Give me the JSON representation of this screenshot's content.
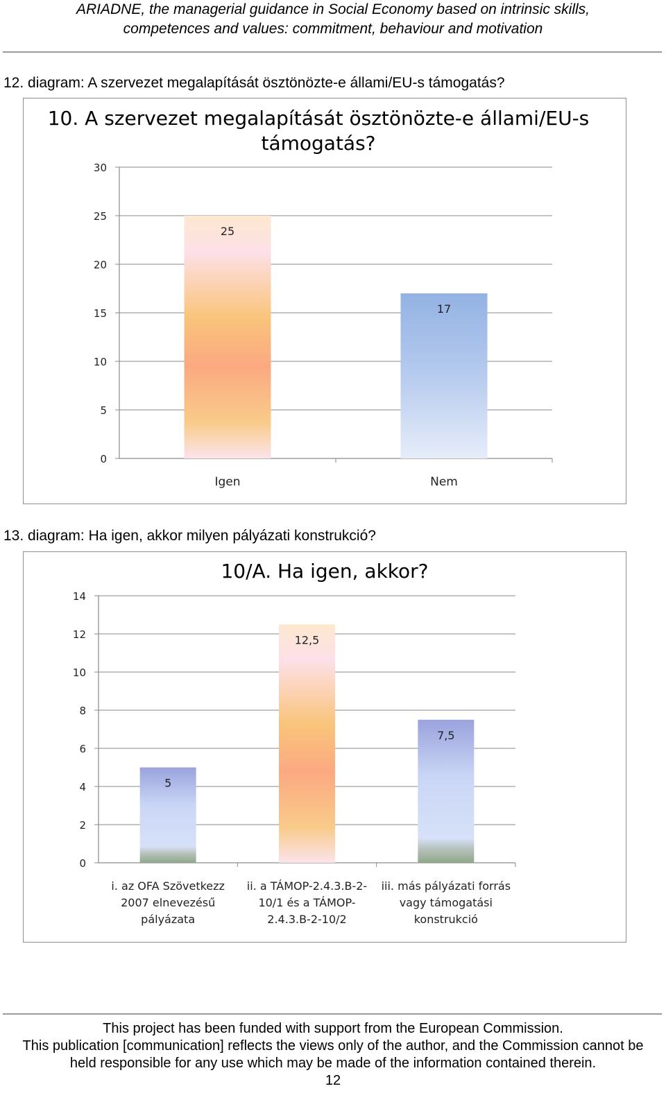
{
  "header": {
    "line1": "ARIADNE, the managerial guidance in Social Economy based on intrinsic skills,",
    "line2": "competences and values: commitment, behaviour and motivation"
  },
  "captions": {
    "c1": "12. diagram: A szervezet megalapítását ösztönözte-e állami/EU-s támogatás?",
    "c2": "13. diagram: Ha igen, akkor milyen pályázati konstrukció?"
  },
  "chart_data": [
    {
      "type": "bar",
      "title_lines": [
        "10. A szervezet megalapítását ösztönözte-e állami/EU-s",
        "támogatás?"
      ],
      "categories": [
        "Igen",
        "Nem"
      ],
      "values": [
        25,
        17
      ],
      "value_labels": [
        "25",
        "17"
      ],
      "yticks": [
        "0",
        "5",
        "10",
        "15",
        "20",
        "25",
        "30"
      ],
      "ylim": [
        0,
        30
      ],
      "grid": true,
      "colors": [
        "#f9b07a",
        "#9bb8e6"
      ]
    },
    {
      "type": "bar",
      "title_lines": [
        "10/A. Ha igen, akkor?"
      ],
      "categories": [
        [
          "i. az OFA Szövetkezz",
          "2007 elnevezésű",
          "pályázata"
        ],
        [
          "ii. a TÁMOP-2.4.3.B-2-",
          "10/1 és a TÁMOP-",
          "2.4.3.B-2-10/2"
        ],
        [
          "iii. más pályázati forrás",
          "vagy támogatási",
          "konstrukció"
        ]
      ],
      "values": [
        5,
        12.5,
        7.5
      ],
      "value_labels": [
        "5",
        "12,5",
        "7,5"
      ],
      "yticks": [
        "0",
        "2",
        "4",
        "6",
        "8",
        "10",
        "12",
        "14"
      ],
      "ylim": [
        0,
        14
      ],
      "grid": true,
      "colors": [
        "#9ea6dc",
        "#f9b07a",
        "#9ea6dc"
      ]
    }
  ],
  "footer": {
    "line1": "This project has been funded with support from the European Commission.",
    "line2": "This publication [communication] reflects the views only of the author, and the Commission cannot be",
    "line3": "held responsible for any use which may be made of the information contained therein.",
    "page_number": "12"
  }
}
